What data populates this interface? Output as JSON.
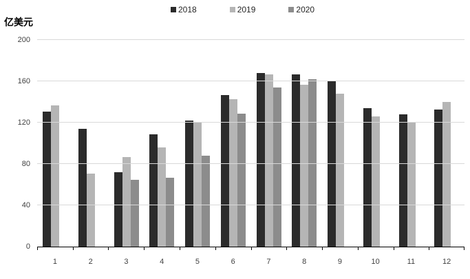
{
  "chart_data": {
    "type": "bar",
    "title": "",
    "ylabel": "亿美元",
    "xlabel": "",
    "categories": [
      "1",
      "2",
      "3",
      "4",
      "5",
      "6",
      "7",
      "8",
      "9",
      "10",
      "11",
      "12"
    ],
    "series": [
      {
        "name": "2018",
        "color": "#2b2b2b",
        "values": [
          131,
          114,
          72,
          109,
          122,
          147,
          168,
          167,
          160,
          134,
          128,
          133
        ]
      },
      {
        "name": "2019",
        "color": "#b5b5b5",
        "values": [
          137,
          71,
          87,
          96,
          121,
          143,
          167,
          157,
          148,
          126,
          121,
          140
        ]
      },
      {
        "name": "2020",
        "color": "#8c8c8c",
        "values": [
          null,
          null,
          65,
          67,
          88,
          129,
          154,
          162,
          null,
          null,
          null,
          null
        ]
      }
    ],
    "ylim": [
      0,
      200
    ],
    "yticks": [
      0,
      40,
      80,
      120,
      160,
      200
    ],
    "grid": true,
    "legend_position": "top",
    "gridline_color": "#d9d9d9",
    "axis_color": "#000000"
  }
}
